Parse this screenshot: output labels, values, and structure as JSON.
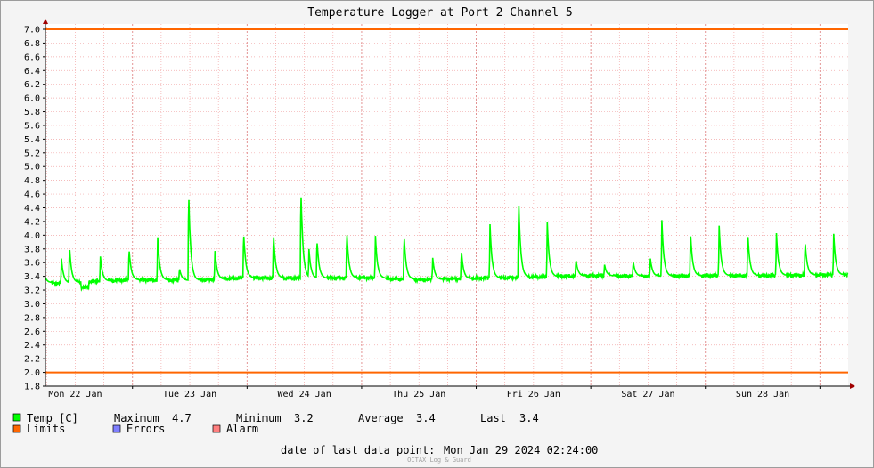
{
  "chart_data": {
    "type": "line",
    "title": "Temperature Logger at Port 2 Channel 5",
    "xlabel": "",
    "ylabel": "",
    "ylim": [
      1.8,
      7.0
    ],
    "y_ticks": [
      "1.8",
      "2.0",
      "2.2",
      "2.4",
      "2.6",
      "2.8",
      "3.0",
      "3.2",
      "3.4",
      "3.6",
      "3.8",
      "4.0",
      "4.2",
      "4.4",
      "4.6",
      "4.8",
      "5.0",
      "5.2",
      "5.4",
      "5.6",
      "5.8",
      "6.0",
      "6.2",
      "6.4",
      "6.6",
      "6.8",
      "7.0"
    ],
    "x_labels": [
      "Mon 22 Jan",
      "Tue 23 Jan",
      "Wed 24 Jan",
      "Thu 25 Jan",
      "Fri 26 Jan",
      "Sat 27 Jan",
      "Sun 28 Jan"
    ],
    "grid": true,
    "series": [
      {
        "name": "Temp [C]",
        "color": "#00ff00",
        "baseline": [
          {
            "day": 0.0,
            "v": 3.32
          },
          {
            "day": 0.35,
            "v": 3.3
          },
          {
            "day": 0.7,
            "v": 3.33
          },
          {
            "day": 1.0,
            "v": 3.35
          },
          {
            "day": 1.5,
            "v": 3.34
          },
          {
            "day": 2.0,
            "v": 3.38
          },
          {
            "day": 2.5,
            "v": 3.37
          },
          {
            "day": 3.0,
            "v": 3.38
          },
          {
            "day": 3.5,
            "v": 3.35
          },
          {
            "day": 4.0,
            "v": 3.37
          },
          {
            "day": 4.5,
            "v": 3.39
          },
          {
            "day": 5.0,
            "v": 3.41
          },
          {
            "day": 5.5,
            "v": 3.4
          },
          {
            "day": 6.0,
            "v": 3.41
          },
          {
            "day": 6.5,
            "v": 3.41
          },
          {
            "day": 6.97,
            "v": 3.42
          }
        ],
        "peaks": [
          {
            "day": 0.2,
            "v": 3.99
          },
          {
            "day": 0.38,
            "v": 3.66
          },
          {
            "day": 0.45,
            "v": 3.84
          },
          {
            "day": 0.72,
            "v": 3.69
          },
          {
            "day": 0.97,
            "v": 3.81
          },
          {
            "day": 1.22,
            "v": 3.97
          },
          {
            "day": 1.41,
            "v": 3.52
          },
          {
            "day": 1.49,
            "v": 4.65
          },
          {
            "day": 1.72,
            "v": 3.77
          },
          {
            "day": 1.97,
            "v": 4.05
          },
          {
            "day": 2.23,
            "v": 4.04
          },
          {
            "day": 2.47,
            "v": 4.69
          },
          {
            "day": 2.54,
            "v": 3.8
          },
          {
            "day": 2.61,
            "v": 3.94
          },
          {
            "day": 2.87,
            "v": 4.07
          },
          {
            "day": 3.12,
            "v": 3.99
          },
          {
            "day": 3.37,
            "v": 4.01
          },
          {
            "day": 3.62,
            "v": 3.67
          },
          {
            "day": 3.87,
            "v": 3.79
          },
          {
            "day": 4.12,
            "v": 4.16
          },
          {
            "day": 4.37,
            "v": 4.55
          },
          {
            "day": 4.62,
            "v": 4.19
          },
          {
            "day": 4.87,
            "v": 3.65
          },
          {
            "day": 5.12,
            "v": 3.57
          },
          {
            "day": 5.37,
            "v": 3.62
          },
          {
            "day": 5.52,
            "v": 3.66
          },
          {
            "day": 5.62,
            "v": 4.22
          },
          {
            "day": 5.87,
            "v": 4.05
          },
          {
            "day": 6.12,
            "v": 4.14
          },
          {
            "day": 6.37,
            "v": 4.04
          },
          {
            "day": 6.62,
            "v": 4.03
          },
          {
            "day": 6.87,
            "v": 3.92
          },
          {
            "day": 7.12,
            "v": 4.02
          }
        ]
      },
      {
        "name": "Limits",
        "color": "#ff6600",
        "values": [
          2.0,
          7.0
        ]
      }
    ]
  },
  "legend": {
    "temp_label": "Temp [C]",
    "maximum_label": "Maximum",
    "maximum_value": "4.7",
    "minimum_label": "Minimum",
    "minimum_value": "3.2",
    "average_label": "Average",
    "average_value": "3.4",
    "last_label": "Last",
    "last_value": "3.4",
    "limits_label": "Limits",
    "errors_label": "Errors",
    "alarm_label": "Alarm",
    "temp_color": "#00ff00",
    "limits_color": "#ff6600",
    "errors_color": "#7f7fff",
    "alarm_color": "#ff7f7f"
  },
  "footer": {
    "last_point_label": "date of last data point:",
    "last_point_value": "Mon Jan 29 2024 02:24:00",
    "brand": "OCTAX Log & Guard"
  }
}
